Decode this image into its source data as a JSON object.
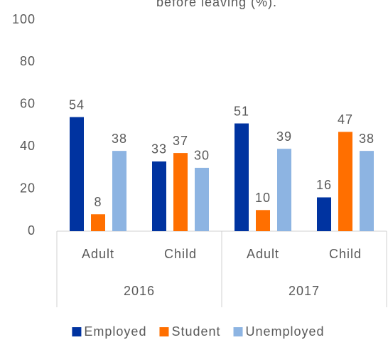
{
  "chart_data": {
    "type": "bar",
    "title": "before leaving (%).",
    "groups": [
      {
        "name": "2016",
        "categories": [
          "Adult",
          "Child"
        ]
      },
      {
        "name": "2017",
        "categories": [
          "Adult",
          "Child"
        ]
      }
    ],
    "series": [
      {
        "name": "Employed",
        "color": "#0033a0",
        "values": [
          54,
          33,
          51,
          16
        ]
      },
      {
        "name": "Student",
        "color": "#ff6f00",
        "values": [
          8,
          37,
          10,
          47
        ]
      },
      {
        "name": "Unemployed",
        "color": "#8db4e2",
        "values": [
          38,
          30,
          39,
          38
        ]
      }
    ],
    "ylim": [
      0,
      100
    ],
    "yticks": [
      0,
      20,
      40,
      60,
      80,
      100
    ],
    "grid": false,
    "legend": "bottom",
    "data_labels": true
  }
}
